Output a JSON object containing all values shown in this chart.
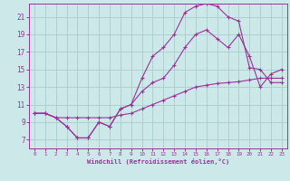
{
  "bg_color": "#cce8e8",
  "grid_color": "#aacccc",
  "line_color": "#993399",
  "marker_color": "#993399",
  "xlabel": "Windchill (Refroidissement éolien,°C)",
  "xlabel_color": "#993399",
  "tick_color": "#993399",
  "xlim": [
    -0.5,
    23.5
  ],
  "ylim": [
    6.0,
    22.5
  ],
  "xticks": [
    0,
    1,
    2,
    3,
    4,
    5,
    6,
    7,
    8,
    9,
    10,
    11,
    12,
    13,
    14,
    15,
    16,
    17,
    18,
    19,
    20,
    21,
    22,
    23
  ],
  "yticks": [
    7,
    9,
    11,
    13,
    15,
    17,
    19,
    21
  ],
  "curve1_x": [
    0,
    1,
    2,
    3,
    4,
    5,
    6,
    7,
    8,
    9,
    10,
    11,
    12,
    13,
    14,
    15,
    16,
    17,
    18,
    19,
    20,
    21,
    22,
    23
  ],
  "curve1_y": [
    10.0,
    10.0,
    9.5,
    8.5,
    7.2,
    7.2,
    9.0,
    8.5,
    10.5,
    11.0,
    14.0,
    16.5,
    17.5,
    19.0,
    21.5,
    22.2,
    22.5,
    22.2,
    21.0,
    20.5,
    15.2,
    15.0,
    13.5,
    13.5
  ],
  "curve2_x": [
    0,
    1,
    2,
    3,
    4,
    5,
    6,
    7,
    8,
    9,
    10,
    11,
    12,
    13,
    14,
    15,
    16,
    17,
    18,
    19,
    20,
    21,
    22,
    23
  ],
  "curve2_y": [
    10.0,
    10.0,
    9.5,
    8.5,
    7.2,
    7.2,
    9.0,
    8.5,
    10.5,
    11.0,
    12.5,
    13.5,
    14.0,
    15.5,
    17.5,
    19.0,
    19.5,
    18.5,
    17.5,
    19.0,
    16.5,
    13.0,
    14.5,
    15.0
  ],
  "curve3_x": [
    0,
    1,
    2,
    3,
    4,
    5,
    6,
    7,
    8,
    9,
    10,
    11,
    12,
    13,
    14,
    15,
    16,
    17,
    18,
    19,
    20,
    21,
    22,
    23
  ],
  "curve3_y": [
    10.0,
    10.0,
    9.5,
    9.5,
    9.5,
    9.5,
    9.5,
    9.5,
    9.8,
    10.0,
    10.5,
    11.0,
    11.5,
    12.0,
    12.5,
    13.0,
    13.2,
    13.4,
    13.5,
    13.6,
    13.8,
    14.0,
    14.0,
    14.0
  ]
}
